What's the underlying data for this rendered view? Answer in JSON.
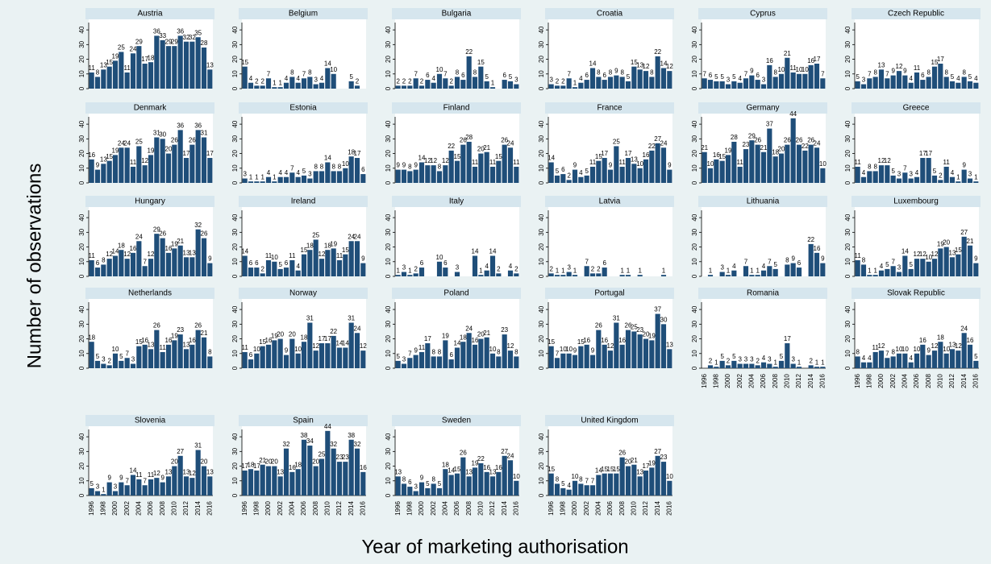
{
  "chart_data": {
    "type": "bar",
    "ylabel": "Number of observations",
    "xlabel": "Year of marketing authorisation",
    "categories": [
      "1996",
      null,
      "1998",
      null,
      "2000",
      null,
      "2002",
      null,
      "2004",
      null,
      "2006",
      null,
      "2008",
      null,
      "2010",
      null,
      "2012",
      null,
      "2014",
      null,
      "2016"
    ],
    "ylim": [
      0,
      45
    ],
    "yticks": [
      0,
      10,
      20,
      30,
      40
    ],
    "color": "#1f4e79",
    "panels": [
      {
        "title": "Austria",
        "values": [
          11,
          8,
          13,
          15,
          19,
          25,
          11,
          24,
          29,
          17,
          18,
          36,
          33,
          29,
          29,
          36,
          32,
          32,
          35,
          28,
          13
        ]
      },
      {
        "title": "Belgium",
        "values": [
          15,
          4,
          2,
          2,
          7,
          1,
          1,
          4,
          8,
          4,
          7,
          8,
          3,
          4,
          14,
          10,
          null,
          null,
          5,
          2,
          null
        ]
      },
      {
        "title": "Bulgaria",
        "values": [
          2,
          2,
          2,
          7,
          2,
          6,
          4,
          10,
          7,
          2,
          8,
          6,
          22,
          8,
          15,
          5,
          1,
          null,
          6,
          5,
          3
        ]
      },
      {
        "title": "Croatia",
        "values": [
          3,
          2,
          2,
          7,
          1,
          4,
          6,
          14,
          8,
          6,
          8,
          9,
          8,
          5,
          15,
          13,
          12,
          8,
          22,
          14,
          12
        ]
      },
      {
        "title": "Cyprus",
        "values": [
          7,
          6,
          5,
          5,
          3,
          5,
          4,
          7,
          9,
          6,
          3,
          16,
          8,
          10,
          21,
          11,
          10,
          10,
          16,
          17,
          7
        ]
      },
      {
        "title": "Czech Republic",
        "values": [
          5,
          3,
          7,
          8,
          13,
          7,
          9,
          12,
          9,
          4,
          11,
          6,
          8,
          15,
          17,
          8,
          5,
          4,
          8,
          5,
          4
        ]
      },
      {
        "title": "Denmark",
        "values": [
          16,
          9,
          13,
          15,
          19,
          24,
          24,
          11,
          25,
          12,
          19,
          31,
          30,
          20,
          26,
          36,
          17,
          26,
          36,
          31,
          17
        ]
      },
      {
        "title": "Estonia",
        "values": [
          3,
          1,
          1,
          1,
          4,
          1,
          4,
          4,
          7,
          4,
          5,
          3,
          8,
          8,
          14,
          8,
          8,
          10,
          18,
          17,
          6
        ]
      },
      {
        "title": "Finland",
        "values": [
          9,
          9,
          8,
          9,
          14,
          12,
          12,
          8,
          12,
          22,
          15,
          26,
          28,
          11,
          20,
          21,
          11,
          15,
          26,
          24,
          11
        ]
      },
      {
        "title": "France",
        "values": [
          14,
          5,
          6,
          2,
          9,
          4,
          5,
          11,
          15,
          17,
          9,
          25,
          11,
          17,
          13,
          10,
          16,
          22,
          27,
          24,
          9
        ]
      },
      {
        "title": "Germany",
        "values": [
          21,
          10,
          16,
          15,
          19,
          28,
          11,
          23,
          29,
          26,
          21,
          37,
          18,
          20,
          26,
          44,
          26,
          22,
          26,
          24,
          10
        ]
      },
      {
        "title": "Greece",
        "values": [
          11,
          4,
          8,
          8,
          12,
          12,
          5,
          3,
          7,
          3,
          4,
          17,
          17,
          5,
          2,
          11,
          4,
          1,
          9,
          3,
          1
        ]
      },
      {
        "title": "Hungary",
        "values": [
          11,
          6,
          8,
          12,
          14,
          18,
          12,
          16,
          24,
          7,
          12,
          29,
          26,
          16,
          19,
          21,
          13,
          13,
          32,
          26,
          9
        ]
      },
      {
        "title": "Ireland",
        "values": [
          14,
          6,
          6,
          2,
          11,
          10,
          5,
          6,
          11,
          4,
          15,
          18,
          25,
          12,
          18,
          19,
          11,
          15,
          24,
          24,
          9
        ]
      },
      {
        "title": "Italy",
        "values": [
          1,
          3,
          1,
          2,
          6,
          null,
          null,
          10,
          6,
          null,
          3,
          null,
          null,
          14,
          1,
          4,
          14,
          2,
          null,
          4,
          2
        ]
      },
      {
        "title": "Latvia",
        "values": [
          2,
          1,
          1,
          3,
          1,
          null,
          7,
          2,
          2,
          6,
          null,
          null,
          1,
          1,
          null,
          1,
          null,
          null,
          null,
          1,
          null
        ]
      },
      {
        "title": "Lithuania",
        "values": [
          null,
          1,
          null,
          3,
          1,
          4,
          null,
          7,
          1,
          1,
          4,
          7,
          5,
          null,
          8,
          9,
          6,
          null,
          22,
          16,
          9
        ]
      },
      {
        "title": "Luxembourg",
        "values": [
          11,
          8,
          1,
          1,
          4,
          5,
          7,
          3,
          14,
          5,
          12,
          12,
          10,
          12,
          19,
          20,
          13,
          15,
          27,
          21,
          9
        ]
      },
      {
        "title": "Netherlands",
        "values": [
          18,
          5,
          3,
          2,
          10,
          5,
          7,
          3,
          15,
          16,
          13,
          26,
          11,
          16,
          19,
          23,
          13,
          16,
          26,
          21,
          8
        ]
      },
      {
        "title": "Norway",
        "values": [
          11,
          6,
          10,
          15,
          16,
          19,
          20,
          9,
          20,
          10,
          18,
          31,
          12,
          17,
          17,
          22,
          14,
          14,
          31,
          24,
          12
        ]
      },
      {
        "title": "Poland",
        "values": [
          5,
          3,
          7,
          9,
          11,
          17,
          8,
          8,
          19,
          6,
          14,
          18,
          24,
          16,
          20,
          21,
          10,
          8,
          23,
          12,
          8
        ]
      },
      {
        "title": "Portugal",
        "values": [
          15,
          7,
          10,
          10,
          9,
          15,
          16,
          9,
          26,
          16,
          12,
          31,
          16,
          26,
          25,
          23,
          20,
          19,
          37,
          30,
          13
        ]
      },
      {
        "title": "Romania",
        "values": [
          null,
          2,
          1,
          5,
          2,
          5,
          3,
          3,
          3,
          2,
          4,
          3,
          1,
          5,
          17,
          3,
          1,
          null,
          2,
          1,
          1
        ]
      },
      {
        "title": "Slovak Republic",
        "values": [
          8,
          4,
          4,
          11,
          12,
          7,
          8,
          10,
          10,
          4,
          10,
          16,
          9,
          12,
          18,
          10,
          13,
          12,
          24,
          16,
          5
        ]
      },
      {
        "title": "Slovenia",
        "values": [
          5,
          3,
          1,
          9,
          3,
          9,
          7,
          14,
          11,
          7,
          11,
          12,
          9,
          13,
          20,
          27,
          13,
          12,
          31,
          20,
          13
        ]
      },
      {
        "title": "Spain",
        "values": [
          17,
          18,
          17,
          21,
          20,
          20,
          13,
          32,
          16,
          18,
          38,
          34,
          20,
          25,
          44,
          32,
          23,
          23,
          38,
          32,
          16
        ]
      },
      {
        "title": "Sweden",
        "values": [
          13,
          8,
          6,
          3,
          9,
          5,
          8,
          5,
          18,
          14,
          15,
          26,
          13,
          19,
          22,
          16,
          13,
          16,
          27,
          24,
          10
        ]
      },
      {
        "title": "United Kingdom",
        "values": [
          15,
          8,
          5,
          4,
          10,
          8,
          7,
          7,
          14,
          15,
          15,
          15,
          26,
          20,
          21,
          13,
          17,
          19,
          27,
          23,
          10
        ]
      }
    ]
  }
}
